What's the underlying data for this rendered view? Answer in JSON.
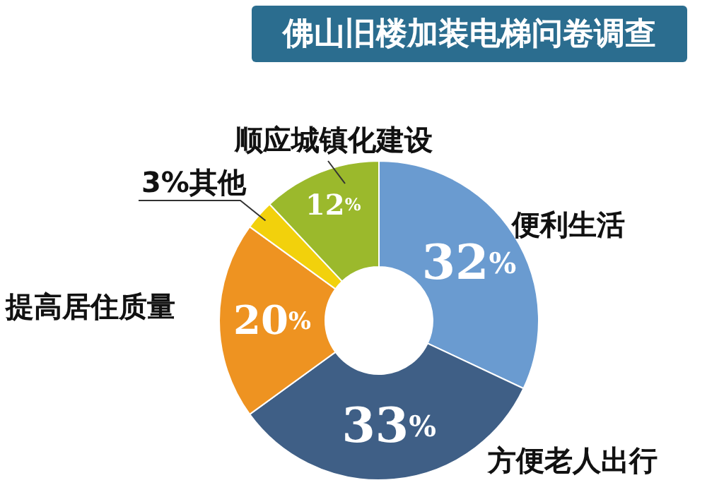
{
  "chart_data": {
    "type": "donut",
    "title": "佛山旧楼加装电梯问卷调查",
    "categories": [
      "便利生活",
      "方便老人出行",
      "提高居住质量",
      "其他",
      "顺应城镇化建设"
    ],
    "values": [
      32,
      33,
      20,
      3,
      12
    ],
    "colors": [
      "#6a9bd0",
      "#3f5f86",
      "#ee9321",
      "#f2d10c",
      "#9bb92c"
    ],
    "value_labels": [
      "32%",
      "33%",
      "20%",
      "3%",
      "12%"
    ]
  }
}
